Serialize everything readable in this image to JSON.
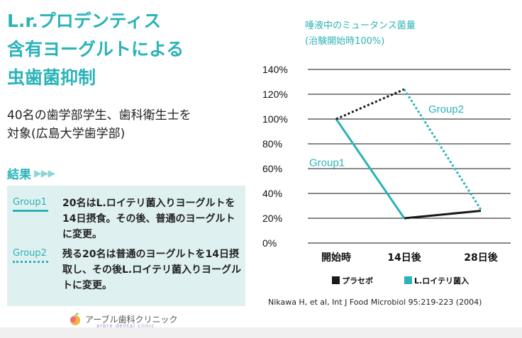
{
  "title_lines": [
    "L.r.プロデンティス",
    "含有ヨーグルトによる",
    "虫歯菌抑制"
  ],
  "subject_lines": [
    "40名の歯学部学生、歯科衛生士を",
    "対象(広島大学歯学部)"
  ],
  "results": {
    "label": "結果",
    "groups": [
      {
        "tag": "Group1",
        "text": "20名はL.ロイテリ菌入りヨーグルトを14日摂食。その後、普通のヨーグルトに変更。"
      },
      {
        "tag": "Group2",
        "text": "残る20名は普通のヨーグルトを14日摂取し、その後L.ロイテリ菌入りヨーグルトに変更。"
      }
    ]
  },
  "clinic": {
    "name": "アーブル歯科クリニック",
    "sub": "arbre dental clinic"
  },
  "citation": "Nikawa H, et al, Int J Food Microbiol 95:219-223 (2004)",
  "colors": {
    "teal": "#2bb3b8",
    "black": "#1a1a1a"
  },
  "chart_data": {
    "type": "line",
    "title_lines": [
      "唾液中のミュータンス菌量",
      "(治験開始時100%)"
    ],
    "categories": [
      "開始時",
      "14日後",
      "28日後"
    ],
    "y_ticks": [
      "140%",
      "120%",
      "100%",
      "80%",
      "60%",
      "40%",
      "20%",
      "0%"
    ],
    "ylim": [
      0,
      140
    ],
    "legend": [
      "プラセボ",
      "L.ロイテリ菌入"
    ],
    "series": [
      {
        "name": "Group1",
        "values": [
          100,
          20,
          26
        ],
        "segments": [
          "L.ロイテリ菌入",
          "プラセボ"
        ],
        "style": "solid"
      },
      {
        "name": "Group2",
        "values": [
          100,
          124,
          27
        ],
        "segments": [
          "プラセボ",
          "L.ロイテリ菌入"
        ],
        "style": "dotted"
      }
    ]
  }
}
